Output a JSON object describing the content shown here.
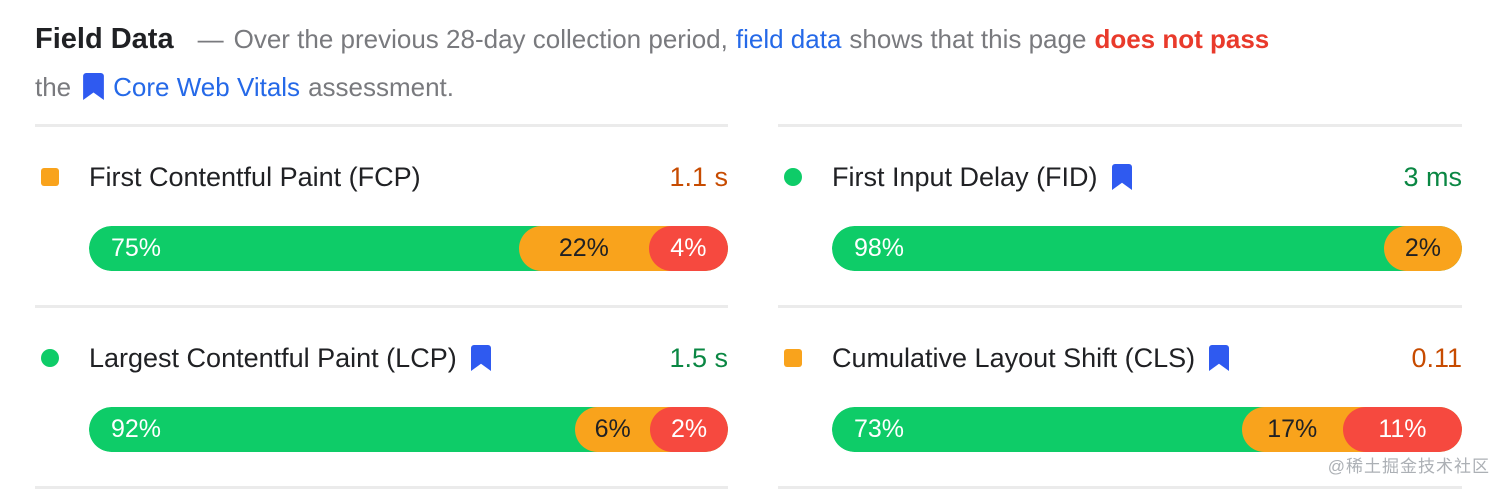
{
  "header": {
    "title": "Field Data",
    "dash": "—",
    "desc_1": "Over the previous 28-day collection period,",
    "link_field_data": "field data",
    "desc_2": "shows that this page",
    "fail_text": "does not pass",
    "line2_the": "the",
    "link_core_web_vitals": "Core Web Vitals",
    "line2_end": "assessment."
  },
  "metrics": [
    {
      "id": "fcp",
      "name": "First Contentful Paint (FCP)",
      "value": "1.1 s",
      "value_color": "#c74b00",
      "icon_shape": "icon-square",
      "bookmark": false,
      "segments": [
        {
          "label": "75%",
          "value": 75,
          "quality": "good",
          "display_pct": 67.3
        },
        {
          "label": "22%",
          "value": 22,
          "quality": "needs-improvement",
          "display_pct": 20.3
        },
        {
          "label": "4%",
          "value": 4,
          "quality": "poor",
          "display_pct": 12.4
        }
      ]
    },
    {
      "id": "fid",
      "name": "First Input Delay (FID)",
      "value": "3 ms",
      "value_color": "#0a8743",
      "icon_shape": "icon-circle",
      "bookmark": true,
      "segments": [
        {
          "label": "98%",
          "value": 98,
          "quality": "good",
          "display_pct": 87.6
        },
        {
          "label": "2%",
          "value": 2,
          "quality": "needs-improvement",
          "display_pct": 12.4
        }
      ]
    },
    {
      "id": "lcp",
      "name": "Largest Contentful Paint (LCP)",
      "value": "1.5 s",
      "value_color": "#0a8743",
      "icon_shape": "icon-circle",
      "bookmark": true,
      "segments": [
        {
          "label": "92%",
          "value": 92,
          "quality": "good",
          "display_pct": 76.1
        },
        {
          "label": "6%",
          "value": 6,
          "quality": "needs-improvement",
          "display_pct": 11.7
        },
        {
          "label": "2%",
          "value": 2,
          "quality": "poor",
          "display_pct": 12.2
        }
      ]
    },
    {
      "id": "cls",
      "name": "Cumulative Layout Shift (CLS)",
      "value": "0.11",
      "value_color": "#c74b00",
      "icon_shape": "icon-square",
      "bookmark": true,
      "segments": [
        {
          "label": "73%",
          "value": 73,
          "quality": "good",
          "display_pct": 65.0
        },
        {
          "label": "17%",
          "value": 17,
          "quality": "needs-improvement",
          "display_pct": 16.1
        },
        {
          "label": "11%",
          "value": 11,
          "quality": "poor",
          "display_pct": 18.9
        }
      ]
    }
  ],
  "icons": {
    "bookmark": "bookmark-icon",
    "good_dot": "green-circle-icon",
    "average_square": "orange-square-icon"
  },
  "colors": {
    "bar_good": "#0ecc68",
    "bar_needs_improvement": "#f9a31c",
    "bar_poor": "#f6493f",
    "link": "#2569e8",
    "fail_red": "#e93a2b",
    "bookmark_blue": "#2f5af0"
  },
  "watermark": "@稀土掘金技术社区"
}
